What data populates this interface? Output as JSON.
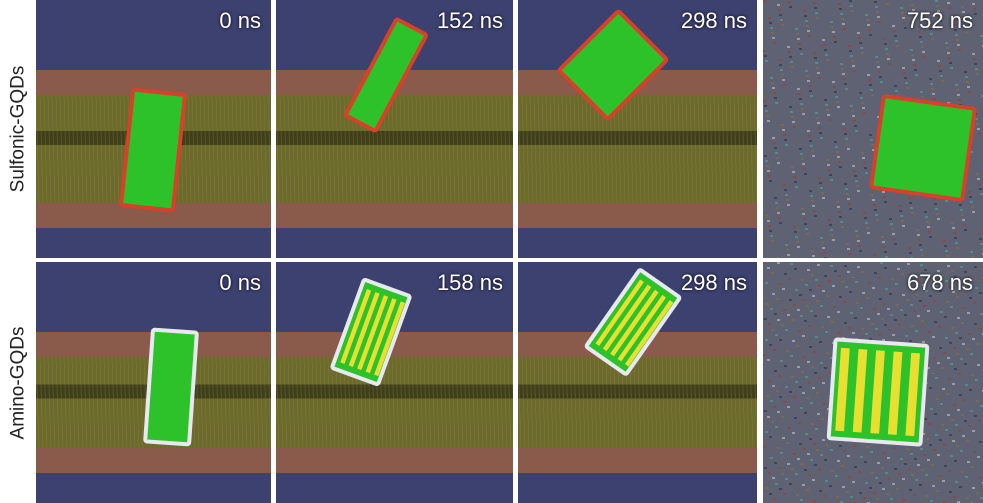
{
  "rows": [
    {
      "label": "Sulfonic-GQDs",
      "panels": [
        "0 ns",
        "152 ns",
        "298 ns",
        "752 ns"
      ]
    },
    {
      "label": "Amino-GQDs",
      "panels": [
        "0 ns",
        "158 ns",
        "298 ns",
        "678 ns"
      ]
    }
  ]
}
